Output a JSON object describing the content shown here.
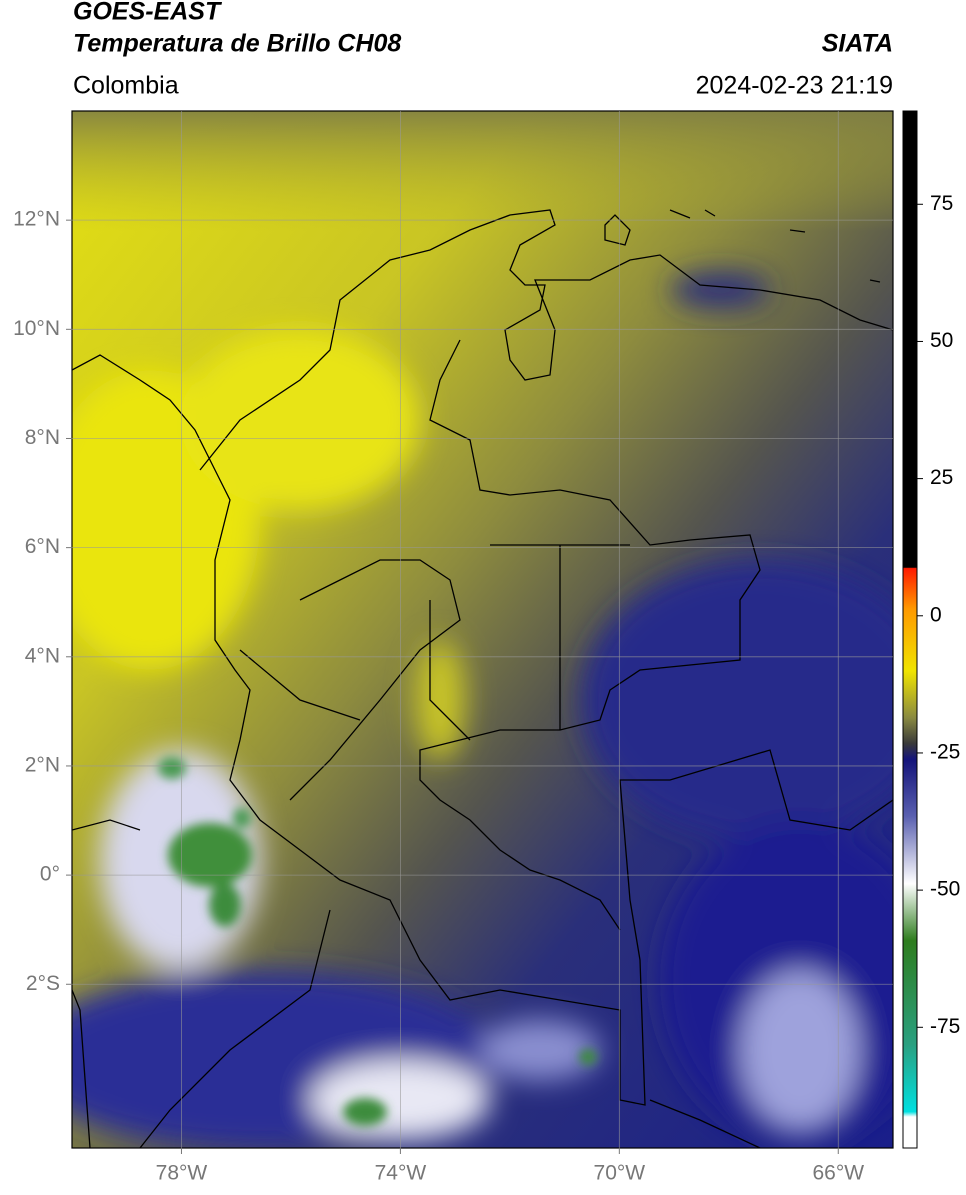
{
  "header": {
    "title": "GOES-EAST",
    "subtitle": "Temperatura de Brillo CH08",
    "source": "SIATA",
    "region": "Colombia",
    "datetime": "2024-02-23 21:19"
  },
  "map": {
    "lonlim": [
      -80,
      -65
    ],
    "latlim": [
      -5,
      14
    ],
    "lonticks": [
      {
        "value": -78,
        "label": "78°W"
      },
      {
        "value": -74,
        "label": "74°W"
      },
      {
        "value": -70,
        "label": "70°W"
      },
      {
        "value": -66,
        "label": "66°W"
      }
    ],
    "latticks": [
      {
        "value": 12,
        "label": "12°N"
      },
      {
        "value": 10,
        "label": "10°N"
      },
      {
        "value": 8,
        "label": "8°N"
      },
      {
        "value": 6,
        "label": "6°N"
      },
      {
        "value": 4,
        "label": "4°N"
      },
      {
        "value": 2,
        "label": "2°N"
      },
      {
        "value": 0,
        "label": "0°"
      },
      {
        "value": -2,
        "label": "2°S"
      }
    ],
    "grid": true
  },
  "colorbar": {
    "lim": [
      -97,
      92
    ],
    "ticks": [
      75,
      50,
      25,
      0,
      -25,
      -50,
      -75
    ]
  }
}
